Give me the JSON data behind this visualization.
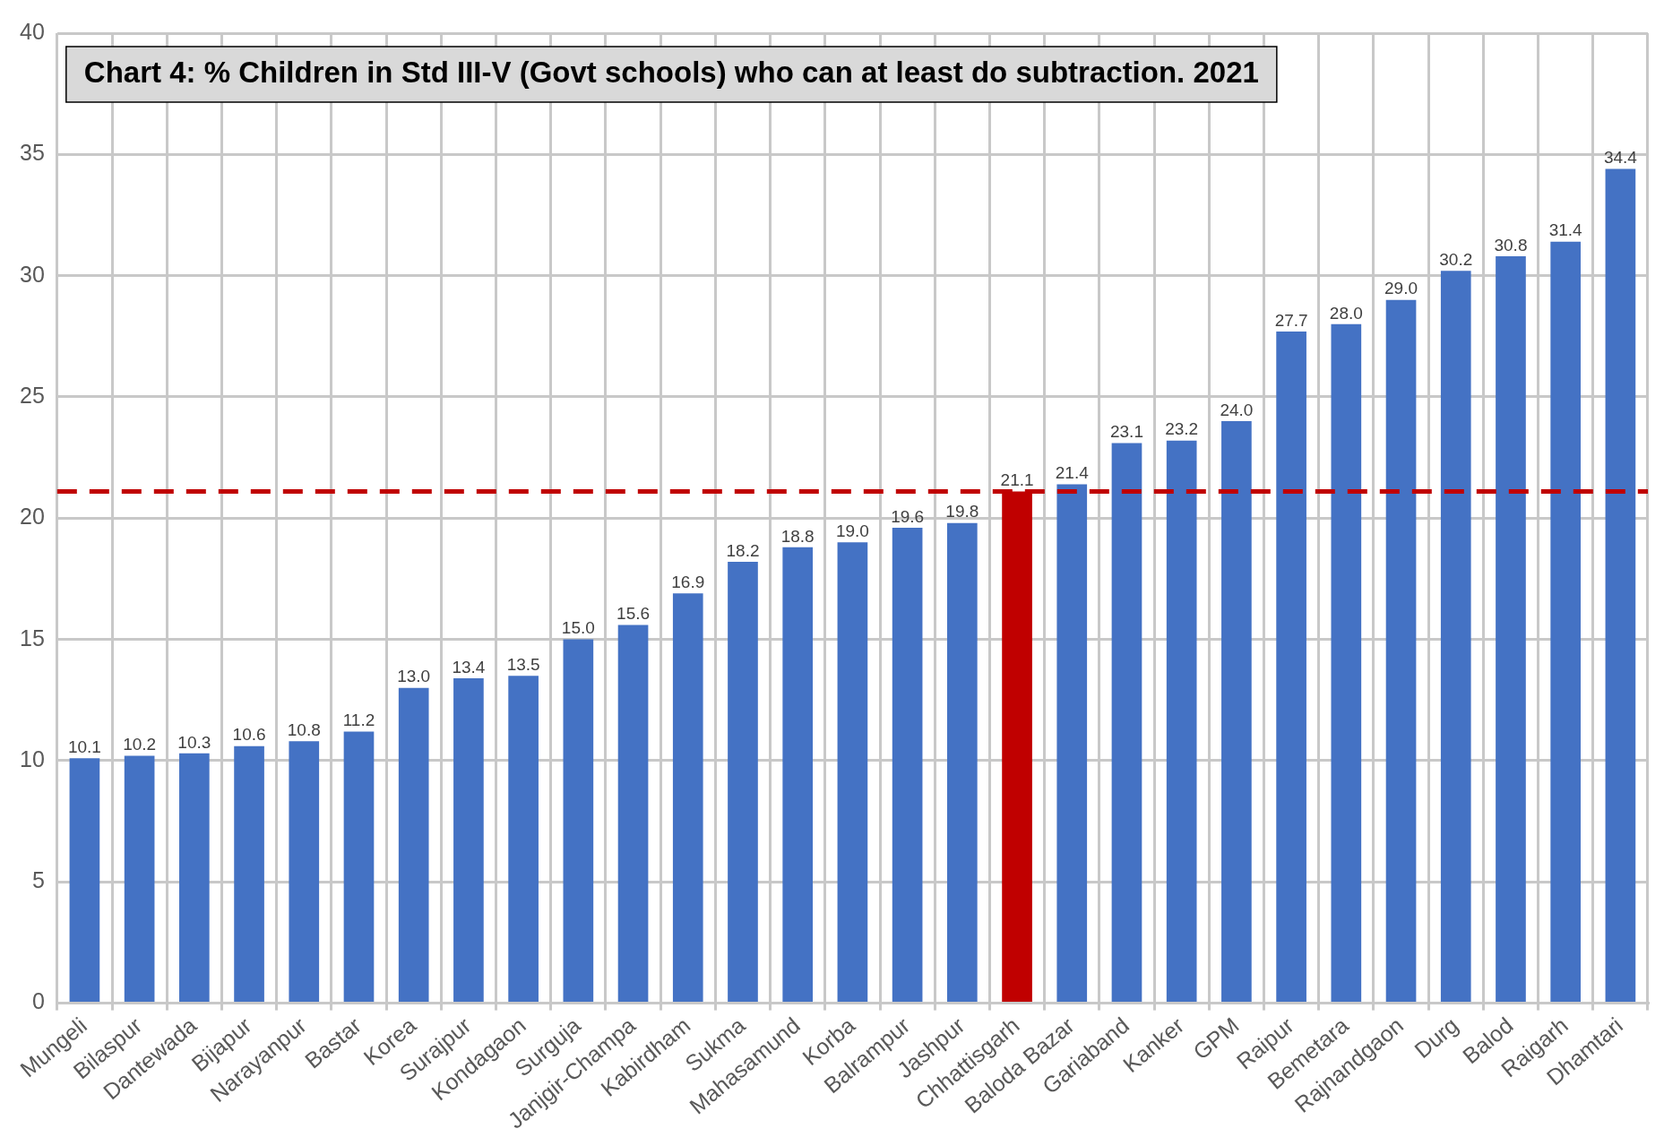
{
  "chart_data": {
    "type": "bar",
    "title": "Chart 4: % Children in Std III-V (Govt schools) who can at least do subtraction. 2021",
    "categories": [
      "Mungeli",
      "Bilaspur",
      "Dantewada",
      "Bijapur",
      "Narayanpur",
      "Bastar",
      "Korea",
      "Surajpur",
      "Kondagaon",
      "Surguja",
      "Janjgir-Champa",
      "Kabirdham",
      "Sukma",
      "Mahasamund",
      "Korba",
      "Balrampur",
      "Jashpur",
      "Chhattisgarh",
      "Baloda Bazar",
      "Gariaband",
      "Kanker",
      "GPM",
      "Raipur",
      "Bemetara",
      "Rajnandgaon",
      "Durg",
      "Balod",
      "Raigarh",
      "Dhamtari"
    ],
    "values": [
      10.1,
      10.2,
      10.3,
      10.6,
      10.8,
      11.2,
      13.0,
      13.4,
      13.5,
      15.0,
      15.6,
      16.9,
      18.2,
      18.8,
      19.0,
      19.6,
      19.8,
      21.1,
      21.4,
      23.1,
      23.2,
      24.0,
      27.7,
      28.0,
      29.0,
      30.2,
      30.8,
      31.4,
      34.4
    ],
    "value_labels": [
      "10.1",
      "10.2",
      "10.3",
      "10.6",
      "10.8",
      "11.2",
      "13.0",
      "13.4",
      "13.5",
      "15.0",
      "15.6",
      "16.9",
      "18.2",
      "18.8",
      "19.0",
      "19.6",
      "19.8",
      "21.1",
      "21.4",
      "23.1",
      "23.2",
      "24.0",
      "27.7",
      "28.0",
      "29.0",
      "30.2",
      "30.8",
      "31.4",
      "34.4"
    ],
    "colors": [
      "#4472c4",
      "#4472c4",
      "#4472c4",
      "#4472c4",
      "#4472c4",
      "#4472c4",
      "#4472c4",
      "#4472c4",
      "#4472c4",
      "#4472c4",
      "#4472c4",
      "#4472c4",
      "#4472c4",
      "#4472c4",
      "#4472c4",
      "#4472c4",
      "#4472c4",
      "#c00000",
      "#4472c4",
      "#4472c4",
      "#4472c4",
      "#4472c4",
      "#4472c4",
      "#4472c4",
      "#4472c4",
      "#4472c4",
      "#4472c4",
      "#4472c4",
      "#4472c4"
    ],
    "ylim": [
      0,
      40
    ],
    "yticks": [
      0,
      5,
      10,
      15,
      20,
      25,
      30,
      35,
      40
    ],
    "grid": true,
    "legend": false,
    "ref_lines": [
      {
        "axis": "y",
        "value": 21.1,
        "color": "#c00000",
        "line_style": "dashed"
      }
    ]
  }
}
